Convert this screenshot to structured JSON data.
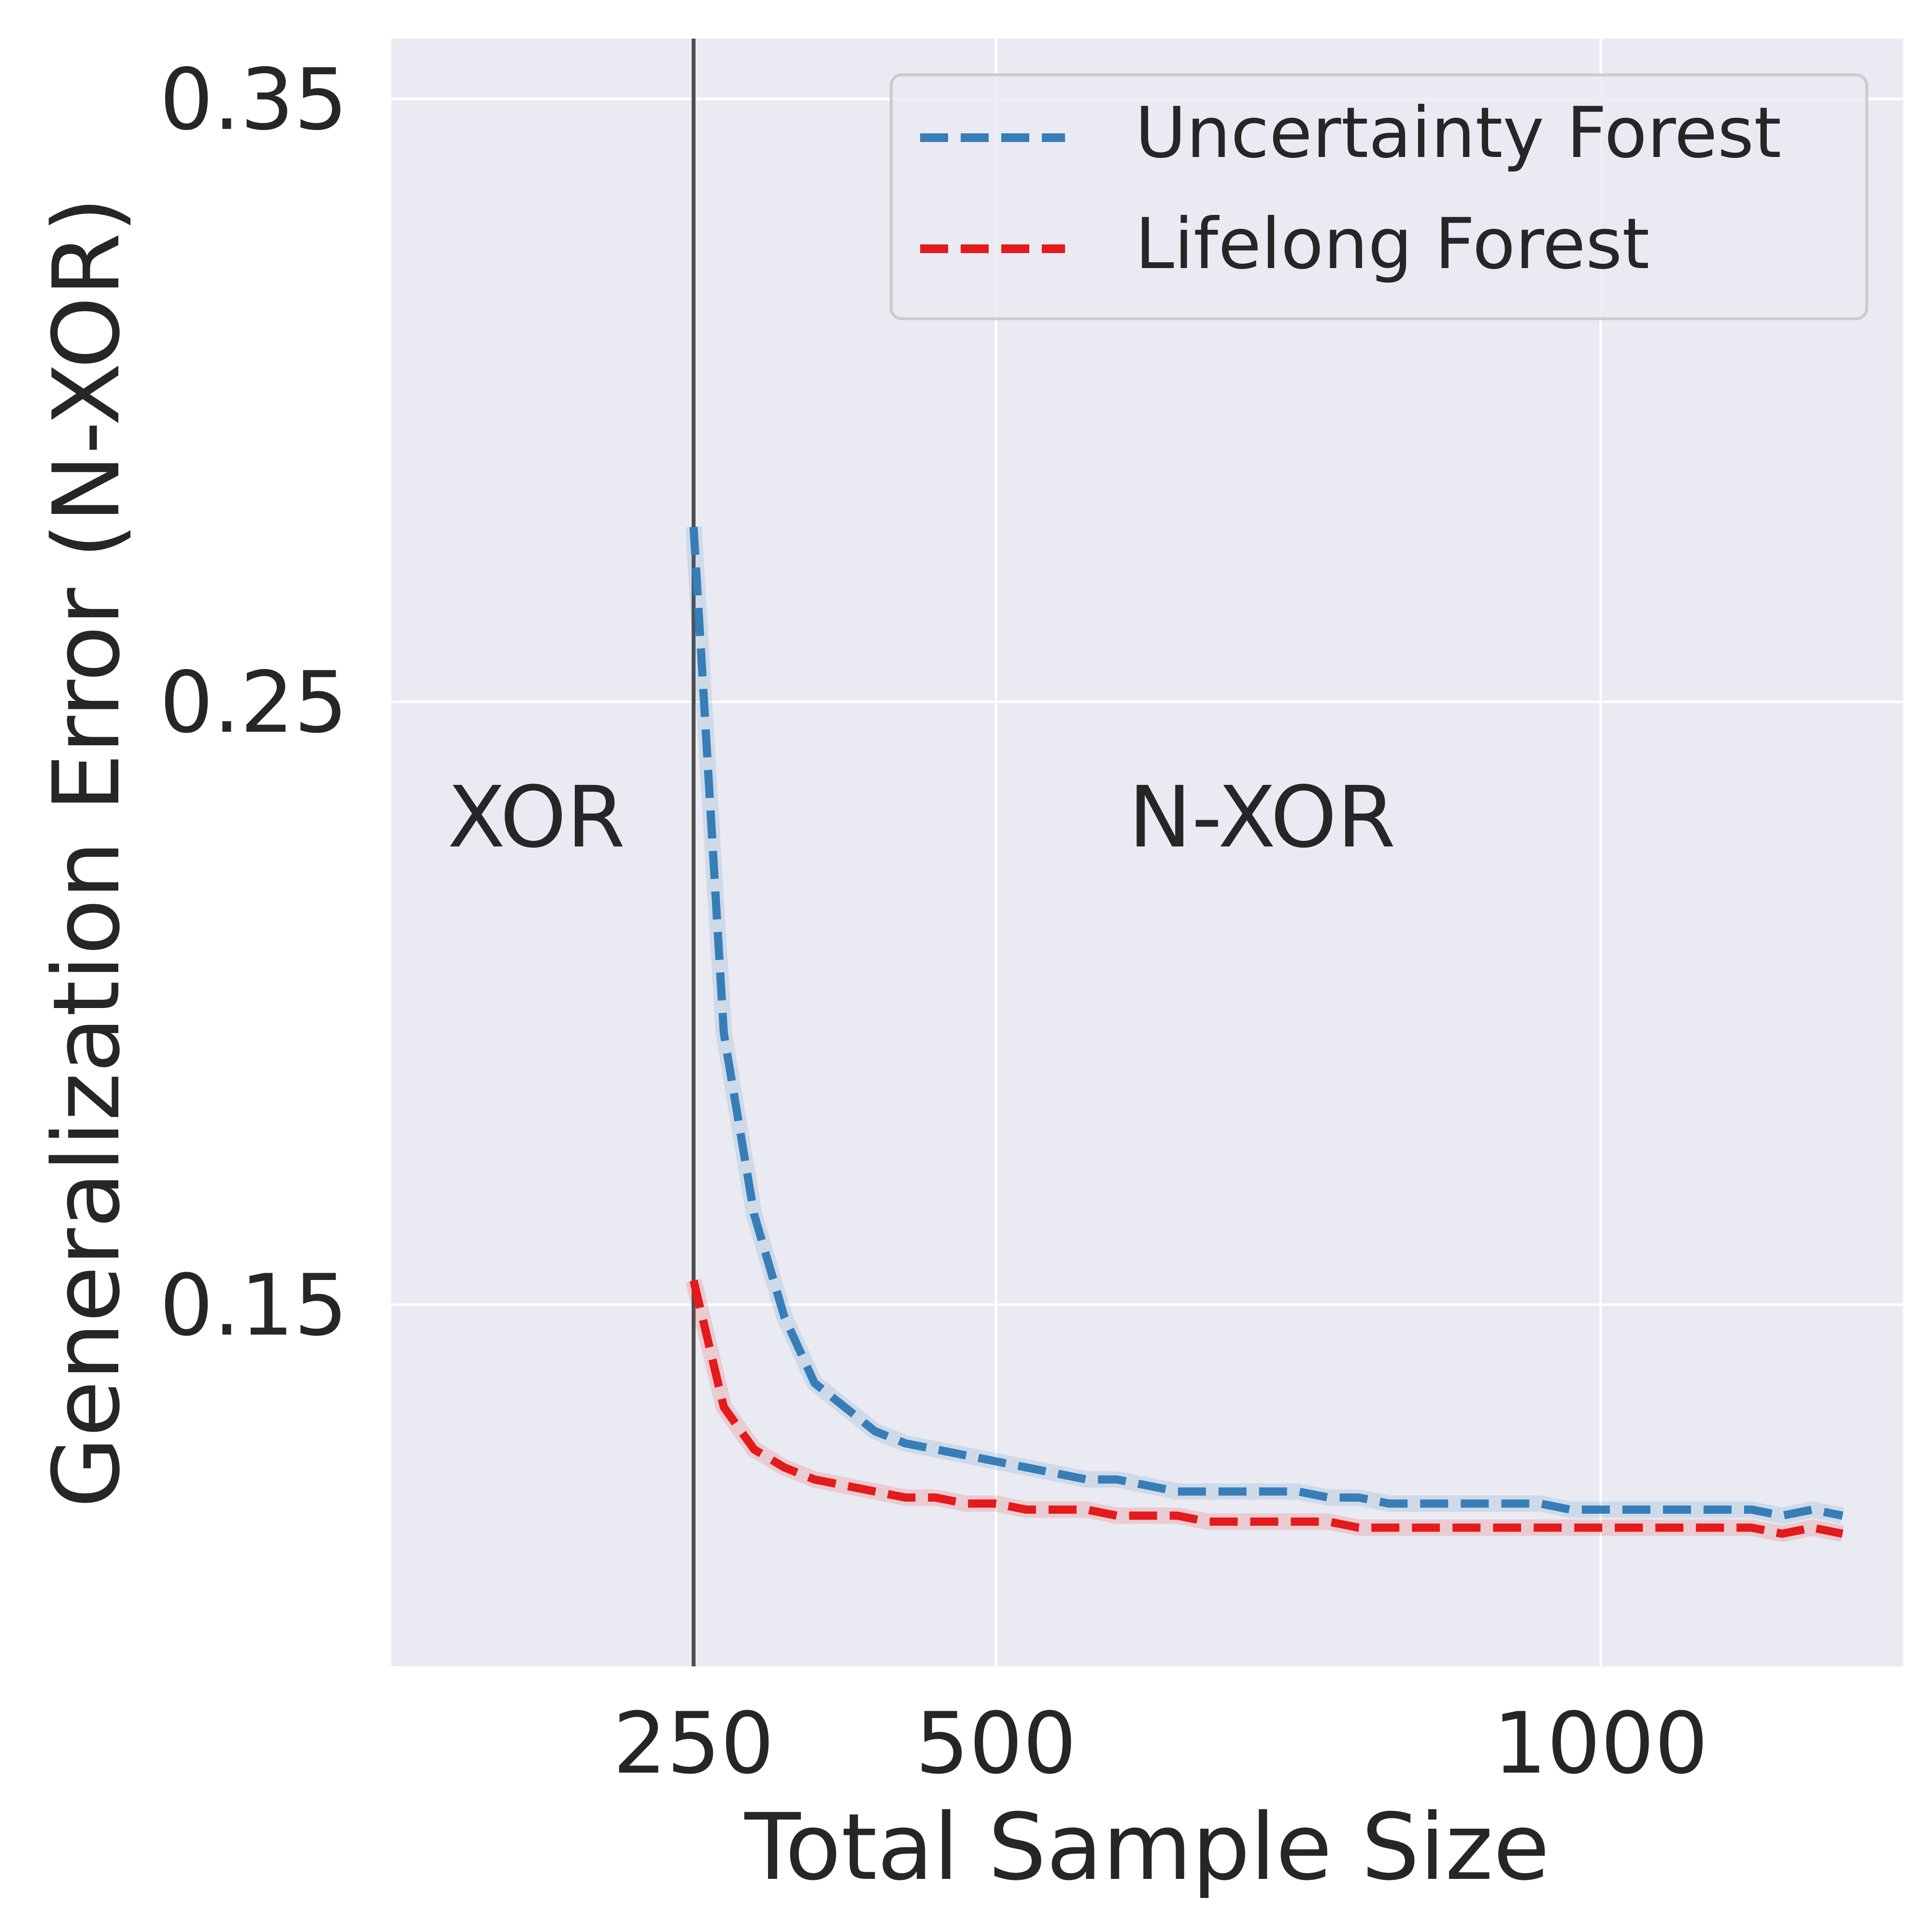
{
  "chart_data": {
    "type": "line",
    "xlabel": "Total Sample Size",
    "ylabel": "Generalization Error (N-XOR)",
    "xlim": [
      0,
      1250
    ],
    "ylim": [
      0.09,
      0.36
    ],
    "x_scale": "linear",
    "xticks": [
      250,
      500,
      1000
    ],
    "xtick_labels": [
      "250",
      "500",
      "1000"
    ],
    "yticks": [
      0.15,
      0.25,
      0.35
    ],
    "ytick_labels": [
      "0.15",
      "0.25",
      "0.35"
    ],
    "grid": true,
    "legend_position": "top-right",
    "vline_x": 250,
    "annotations": [
      {
        "text": "XOR",
        "x": 120,
        "y": 0.226
      },
      {
        "text": "N-XOR",
        "x": 720,
        "y": 0.226
      }
    ],
    "series": [
      {
        "name": "Uncertainty Forest",
        "color": "#377eb8",
        "dash": "dashed",
        "x": [
          250,
          275,
          300,
          325,
          350,
          375,
          400,
          425,
          450,
          475,
          500,
          525,
          550,
          575,
          600,
          625,
          650,
          675,
          700,
          725,
          750,
          775,
          800,
          825,
          850,
          875,
          900,
          925,
          950,
          975,
          1000,
          1025,
          1050,
          1075,
          1100,
          1125,
          1150,
          1175,
          1200
        ],
        "y": [
          0.279,
          0.195,
          0.165,
          0.148,
          0.137,
          0.133,
          0.129,
          0.127,
          0.126,
          0.125,
          0.124,
          0.123,
          0.122,
          0.121,
          0.121,
          0.12,
          0.119,
          0.119,
          0.119,
          0.119,
          0.119,
          0.118,
          0.118,
          0.117,
          0.117,
          0.117,
          0.117,
          0.117,
          0.117,
          0.116,
          0.116,
          0.116,
          0.116,
          0.116,
          0.116,
          0.116,
          0.115,
          0.116,
          0.115
        ]
      },
      {
        "name": "Lifelong Forest",
        "color": "#e41a1c",
        "dash": "dashed",
        "x": [
          250,
          275,
          300,
          325,
          350,
          375,
          400,
          425,
          450,
          475,
          500,
          525,
          550,
          575,
          600,
          625,
          650,
          675,
          700,
          725,
          750,
          775,
          800,
          825,
          850,
          875,
          900,
          925,
          950,
          975,
          1000,
          1025,
          1050,
          1075,
          1100,
          1125,
          1150,
          1175,
          1200
        ],
        "y": [
          0.154,
          0.133,
          0.126,
          0.123,
          0.121,
          0.12,
          0.119,
          0.118,
          0.118,
          0.117,
          0.117,
          0.116,
          0.116,
          0.116,
          0.115,
          0.115,
          0.115,
          0.114,
          0.114,
          0.114,
          0.114,
          0.114,
          0.113,
          0.113,
          0.113,
          0.113,
          0.113,
          0.113,
          0.113,
          0.113,
          0.113,
          0.113,
          0.113,
          0.113,
          0.113,
          0.113,
          0.112,
          0.113,
          0.112
        ]
      }
    ]
  }
}
